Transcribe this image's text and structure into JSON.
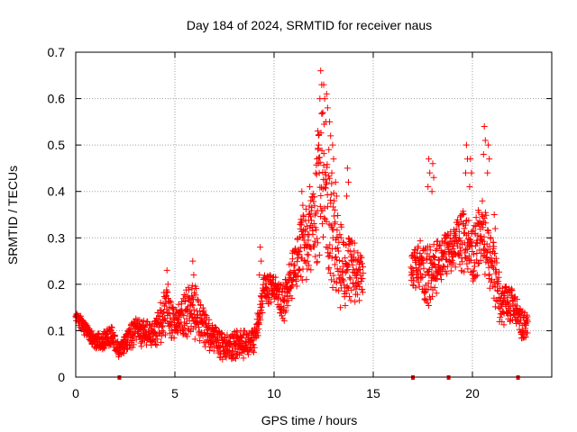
{
  "chart_data": {
    "type": "scatter",
    "title": "Day 184 of 2024, SRMTID for receiver naus",
    "xlabel": "GPS time / hours",
    "ylabel": "SRMTID / TECUs",
    "xlim": [
      0,
      24
    ],
    "ylim": [
      0,
      0.7
    ],
    "xticks": [
      0,
      5,
      10,
      15,
      20
    ],
    "xtick_labels": [
      "0",
      "5",
      "10",
      "15",
      "20"
    ],
    "yticks": [
      0,
      0.1,
      0.2,
      0.3,
      0.4,
      0.5,
      0.6,
      0.7
    ],
    "ytick_labels": [
      "0",
      "0.1",
      "0.2",
      "0.3",
      "0.4",
      "0.5",
      "0.6",
      "0.7"
    ],
    "grid": true,
    "marker": "plus",
    "series_color": "#ff0000",
    "gap_marker_color": "#ee0000",
    "gap_markers_x": [
      2.2,
      17.0,
      18.8,
      22.3
    ],
    "envelope": [
      [
        0.0,
        0.12,
        0.14
      ],
      [
        0.3,
        0.1,
        0.13
      ],
      [
        0.6,
        0.08,
        0.11
      ],
      [
        1.0,
        0.06,
        0.09
      ],
      [
        1.4,
        0.06,
        0.1
      ],
      [
        1.8,
        0.07,
        0.11
      ],
      [
        2.2,
        0.04,
        0.07
      ],
      [
        2.6,
        0.06,
        0.1
      ],
      [
        3.0,
        0.06,
        0.13
      ],
      [
        3.5,
        0.07,
        0.12
      ],
      [
        4.0,
        0.06,
        0.12
      ],
      [
        4.5,
        0.08,
        0.2
      ],
      [
        5.0,
        0.08,
        0.14
      ],
      [
        5.5,
        0.09,
        0.19
      ],
      [
        6.0,
        0.08,
        0.2
      ],
      [
        6.5,
        0.06,
        0.14
      ],
      [
        7.0,
        0.05,
        0.11
      ],
      [
        7.5,
        0.03,
        0.09
      ],
      [
        8.0,
        0.04,
        0.1
      ],
      [
        8.5,
        0.04,
        0.1
      ],
      [
        9.0,
        0.05,
        0.1
      ],
      [
        9.5,
        0.15,
        0.22
      ],
      [
        10.0,
        0.16,
        0.22
      ],
      [
        10.5,
        0.12,
        0.2
      ],
      [
        11.0,
        0.18,
        0.28
      ],
      [
        11.5,
        0.2,
        0.36
      ],
      [
        12.0,
        0.22,
        0.4
      ],
      [
        12.4,
        0.25,
        0.6
      ],
      [
        12.8,
        0.22,
        0.45
      ],
      [
        13.2,
        0.15,
        0.35
      ],
      [
        13.6,
        0.14,
        0.3
      ],
      [
        14.0,
        0.16,
        0.3
      ],
      [
        14.5,
        0.15,
        0.25
      ],
      [
        16.9,
        0.2,
        0.26
      ],
      [
        17.4,
        0.17,
        0.3
      ],
      [
        17.9,
        0.15,
        0.28
      ],
      [
        18.4,
        0.2,
        0.3
      ],
      [
        19.0,
        0.23,
        0.32
      ],
      [
        19.5,
        0.22,
        0.36
      ],
      [
        20.0,
        0.2,
        0.33
      ],
      [
        20.5,
        0.24,
        0.38
      ],
      [
        21.0,
        0.16,
        0.3
      ],
      [
        21.5,
        0.1,
        0.2
      ],
      [
        22.0,
        0.12,
        0.19
      ],
      [
        22.5,
        0.08,
        0.15
      ],
      [
        22.8,
        0.09,
        0.13
      ]
    ],
    "spikes": [
      [
        4.6,
        0.23
      ],
      [
        5.9,
        0.25
      ],
      [
        9.3,
        0.28
      ],
      [
        11.4,
        0.4
      ],
      [
        11.8,
        0.41
      ],
      [
        12.2,
        0.53
      ],
      [
        12.35,
        0.66
      ],
      [
        12.5,
        0.63
      ],
      [
        12.65,
        0.61
      ],
      [
        12.8,
        0.55
      ],
      [
        12.95,
        0.5
      ],
      [
        13.1,
        0.42
      ],
      [
        13.7,
        0.45
      ],
      [
        17.8,
        0.47
      ],
      [
        18.0,
        0.46
      ],
      [
        19.7,
        0.5
      ],
      [
        19.9,
        0.47
      ],
      [
        20.6,
        0.54
      ],
      [
        20.8,
        0.5
      ],
      [
        21.1,
        0.35
      ]
    ]
  }
}
